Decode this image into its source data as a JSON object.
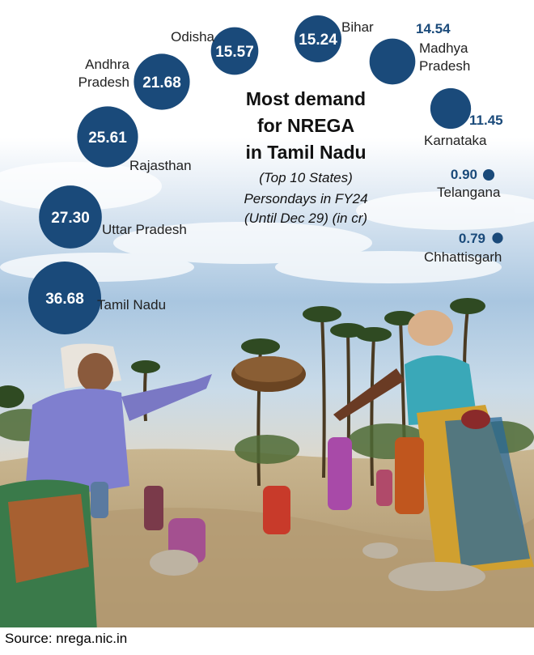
{
  "header": {
    "title": "Most demand\nfor NREGA\nin Tamil Nadu",
    "subtitle": "(Top 10 States)",
    "unit": "Persondays in FY24\n(Until Dec 29) (in cr)"
  },
  "footer": {
    "source": "Source: nrega.nic.in"
  },
  "colors": {
    "bubble": "#1a4a7a",
    "value_text_outside": "#1a4a7a",
    "value_text_inside": "#ffffff",
    "label": "#222222"
  },
  "chart_data": {
    "type": "bubble",
    "title": "Most demand for NREGA in Tamil Nadu",
    "subtitle": "(Top 10 States)",
    "unit": "Persondays in FY24 (Until Dec 29) (in cr)",
    "categories": [
      "Tamil Nadu",
      "Uttar Pradesh",
      "Rajasthan",
      "Andhra Pradesh",
      "Odisha",
      "Bihar",
      "Madhya Pradesh",
      "Karnataka",
      "Telangana",
      "Chhattisgarh"
    ],
    "values": [
      36.68,
      27.3,
      25.61,
      21.68,
      15.57,
      15.24,
      14.54,
      11.45,
      0.9,
      0.79
    ],
    "labels": [
      "Tamil Nadu",
      "Uttar Pradesh",
      "Rajasthan",
      "Andhra\nPradesh",
      "Odisha",
      "Bihar",
      "Madhya\nPradesh",
      "Karnataka",
      "Telangana",
      "Chhattisgarh"
    ],
    "value_labels": [
      "36.68",
      "27.30",
      "25.61",
      "21.68",
      "15.57",
      "15.24",
      "14.54",
      "11.45",
      "0.90",
      "0.79"
    ]
  }
}
